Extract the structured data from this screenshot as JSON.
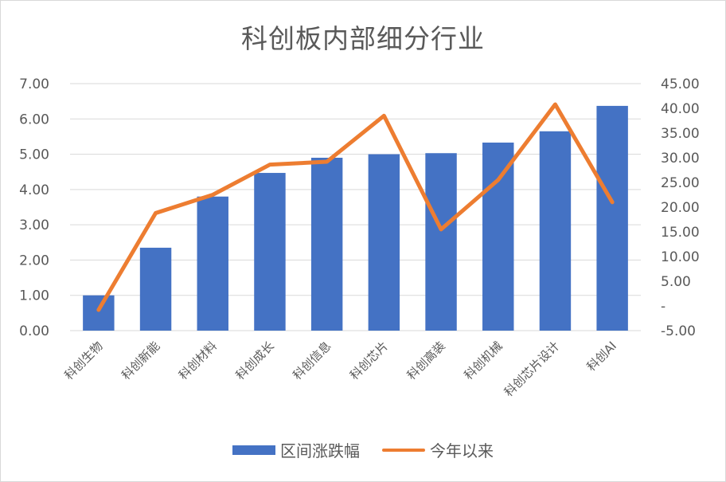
{
  "chart_data": {
    "type": "bar",
    "title": "科创板内部细分行业",
    "categories": [
      "科创生物",
      "科创新能",
      "科创材料",
      "科创成长",
      "科创信息",
      "科创芯片",
      "科创高装",
      "科创机械",
      "科创芯片设计",
      "科创AI"
    ],
    "series": [
      {
        "name": "区间涨跌幅",
        "type": "bar",
        "axis": "left",
        "color": "#4472c4",
        "values": [
          1.0,
          2.35,
          3.8,
          4.47,
          4.9,
          5.0,
          5.03,
          5.33,
          5.65,
          6.37
        ]
      },
      {
        "name": "今年以来",
        "type": "line",
        "axis": "right",
        "color": "#ed7d31",
        "values": [
          -0.8,
          18.8,
          22.5,
          28.6,
          29.2,
          38.5,
          15.5,
          25.5,
          40.8,
          21.0
        ]
      }
    ],
    "y_left": {
      "ylim": [
        0,
        7
      ],
      "ticks": [
        "0.00",
        "1.00",
        "2.00",
        "3.00",
        "4.00",
        "5.00",
        "6.00",
        "7.00"
      ]
    },
    "y_right": {
      "ylim": [
        -5,
        45
      ],
      "ticks": [
        "-5.00",
        "-",
        "5.00",
        "10.00",
        "15.00",
        "20.00",
        "25.00",
        "30.00",
        "35.00",
        "40.00",
        "45.00"
      ]
    },
    "grid": true,
    "legend_position": "bottom"
  }
}
